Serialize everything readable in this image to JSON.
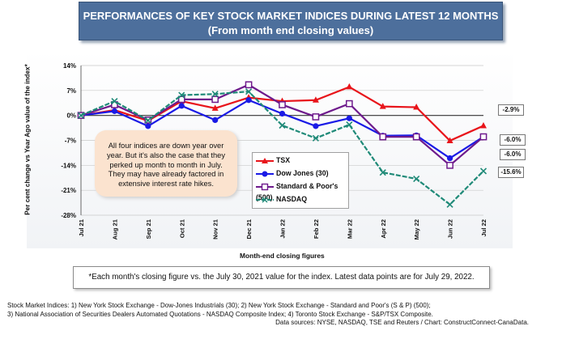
{
  "title": {
    "line1": "PERFORMANCES OF KEY STOCK MARKET INDICES DURING LATEST 12 MONTHS",
    "line2": "(From month end closing values)"
  },
  "chart_data": {
    "type": "line",
    "categories": [
      "Jul 21",
      "Aug 21",
      "Sep 21",
      "Oct 21",
      "Nov 21",
      "Dec 21",
      "Jan 22",
      "Feb 22",
      "Mar 22",
      "Apr 22",
      "May 22",
      "Jun 22",
      "Jul 22"
    ],
    "xlabel": "Month-end closing figures",
    "ylabel": "Per cent change vs Year Ago value of the index*",
    "ylim": [
      -28,
      14
    ],
    "yticks": [
      "14%",
      "7%",
      "0%",
      "-7%",
      "-14%",
      "-21%",
      "-28%"
    ],
    "ytick_values": [
      14,
      7,
      0,
      -7,
      -14,
      -21,
      -28
    ],
    "grid": true,
    "legend_position": "center-right",
    "series": [
      {
        "name": "TSX",
        "color": "#e8141a",
        "marker": "triangle",
        "values": [
          0,
          1.5,
          -1.5,
          4.0,
          2.0,
          5.0,
          4.0,
          4.3,
          8.0,
          2.5,
          2.3,
          -7.1,
          -2.9
        ]
      },
      {
        "name": "Dow Jones (30)",
        "color": "#1a1ae6",
        "marker": "circle",
        "values": [
          0,
          1.2,
          -3.0,
          2.7,
          -1.3,
          4.3,
          0.5,
          -3.0,
          -0.8,
          -5.7,
          -5.6,
          -12.0,
          -6.0
        ]
      },
      {
        "name": "Standard & Poor's (500)",
        "color": "#6e1a8c",
        "marker": "square",
        "values": [
          0,
          3.0,
          -1.3,
          4.5,
          4.5,
          8.6,
          3.0,
          -0.4,
          3.3,
          -6.0,
          -6.0,
          -14.0,
          -6.0
        ]
      },
      {
        "name": "NASDAQ",
        "color": "#1f8a78",
        "marker": "x",
        "values": [
          0,
          4.0,
          -1.4,
          5.7,
          6.0,
          6.7,
          -2.8,
          -6.4,
          -2.6,
          -16.0,
          -17.8,
          -25.0,
          -15.6
        ]
      }
    ],
    "end_labels": [
      {
        "text": "-2.9%",
        "value": -2.9
      },
      {
        "text": "-6.0%",
        "value": -6.0
      },
      {
        "text": "-6.0%",
        "value": -6.0
      },
      {
        "text": "-15.6%",
        "value": -15.6
      }
    ]
  },
  "callout": {
    "lines": [
      "All four indices are down year over",
      "year. But it's also the case that they",
      "perked up month to month in July.",
      "They may have already factored in",
      "extensive interest rate hikes."
    ]
  },
  "footnote": "*Each month's closing figure vs. the July 30, 2021 value for the index. Latest data points are for July 29, 2022.",
  "notes": {
    "line1": "Stock Market Indices: 1) New York Stock Exchange - Dow-Jones Industrials (30); 2) New York Stock Exchange - Standard and Poor's (S & P) (500);",
    "line2": "3) National Association of Securities Dealers Automated Quotations - NASDAQ Composite Index; 4) Toronto Stock Exchange - S&P/TSX Composite.",
    "line3": "Data sources: NYSE, NASDAQ, TSE and Reuters / Chart: ConstructConnect-CanaData."
  }
}
